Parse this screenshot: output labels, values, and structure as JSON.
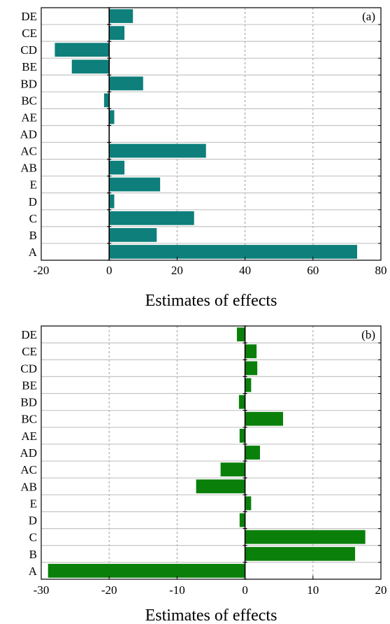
{
  "chart_data": [
    {
      "type": "bar",
      "orientation": "horizontal",
      "panel_label": "(a)",
      "title": "",
      "xlabel": "Estimates of effects",
      "ylabel": "",
      "categories": [
        "DE",
        "CE",
        "CD",
        "BE",
        "BD",
        "BC",
        "AE",
        "AD",
        "AC",
        "AB",
        "E",
        "D",
        "C",
        "B",
        "A"
      ],
      "values": [
        7,
        4.5,
        -16,
        -11,
        10,
        -1.5,
        1.5,
        0,
        28.5,
        4.5,
        15,
        1.5,
        25,
        14,
        73
      ],
      "xlim": [
        -20,
        80
      ],
      "xticks": [
        "-20",
        "0",
        "20",
        "40",
        "60",
        "80"
      ],
      "grid": "vertical dashed",
      "bar_color": "#0e7f7b"
    },
    {
      "type": "bar",
      "orientation": "horizontal",
      "panel_label": "(b)",
      "title": "",
      "xlabel": "Estimates of effects",
      "ylabel": "",
      "categories": [
        "DE",
        "CE",
        "CD",
        "BE",
        "BD",
        "BC",
        "AE",
        "AD",
        "AC",
        "AB",
        "E",
        "D",
        "C",
        "B",
        "A"
      ],
      "values": [
        -1.2,
        1.7,
        1.8,
        0.9,
        -0.9,
        5.6,
        -0.8,
        2.2,
        -3.6,
        -7.2,
        0.9,
        -0.8,
        17.7,
        16.2,
        -29
      ],
      "xlim": [
        -30,
        20
      ],
      "xticks": [
        "-30",
        "-20",
        "-10",
        "0",
        "10",
        "20"
      ],
      "grid": "vertical dashed",
      "bar_color": "#0a800a"
    }
  ]
}
